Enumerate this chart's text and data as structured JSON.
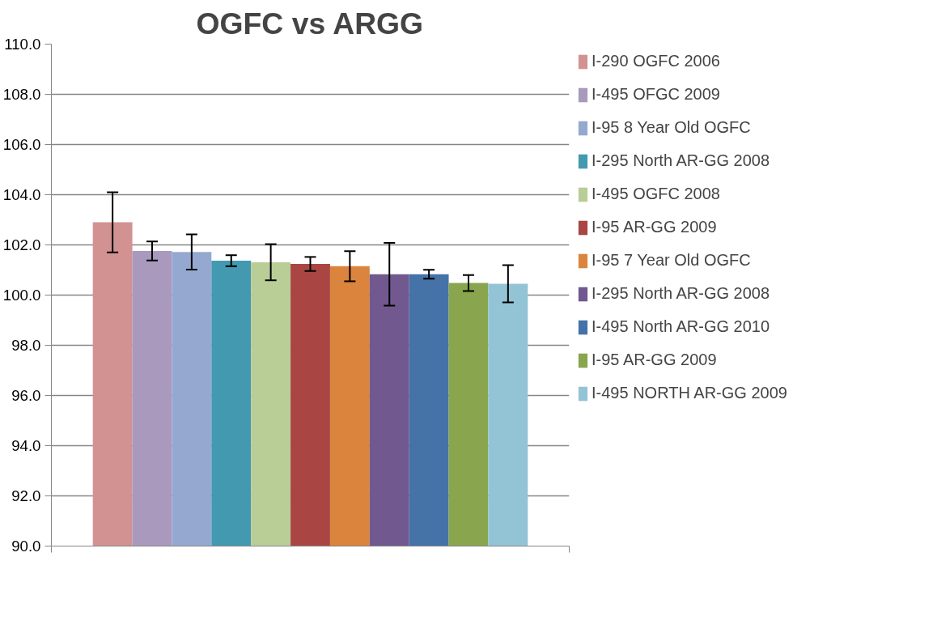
{
  "chart_data": {
    "type": "bar",
    "title": "OGFC vs ARGG",
    "categories": [
      null
    ],
    "ylim": [
      90,
      110
    ],
    "yticks": [
      {
        "value": 90,
        "label": "90.0"
      },
      {
        "value": 92,
        "label": "92.0"
      },
      {
        "value": 94,
        "label": "94.0"
      },
      {
        "value": 96,
        "label": "96.0"
      },
      {
        "value": 98,
        "label": "98.0"
      },
      {
        "value": 100,
        "label": "100.0"
      },
      {
        "value": 102,
        "label": "102.0"
      },
      {
        "value": 104,
        "label": "104.0"
      },
      {
        "value": 106,
        "label": "106.0"
      },
      {
        "value": 108,
        "label": "108.0"
      },
      {
        "value": 110,
        "label": "110.0"
      }
    ],
    "grid": "y",
    "legend": "right",
    "series": [
      {
        "name": "I-290 OGFC 2006",
        "color": "#d39292",
        "values": [
          102.9
        ],
        "errors": [
          1.2
        ]
      },
      {
        "name": "I-495 OFGC 2009",
        "color": "#a899bd",
        "values": [
          101.76
        ],
        "errors": [
          0.38
        ]
      },
      {
        "name": "I-95 8 Year Old OGFC",
        "color": "#95a9d0",
        "values": [
          101.72
        ],
        "errors": [
          0.7
        ]
      },
      {
        "name": "I-295 North AR-GG 2008",
        "color": "#4399b0",
        "values": [
          101.37
        ],
        "errors": [
          0.22
        ]
      },
      {
        "name": "I-495 OGFC 2008",
        "color": "#b9cd96",
        "values": [
          101.31
        ],
        "errors": [
          0.72
        ]
      },
      {
        "name": "I-95 AR-GG 2009",
        "color": "#a94644",
        "values": [
          101.24
        ],
        "errors": [
          0.28
        ]
      },
      {
        "name": "I-95 7 Year Old OGFC",
        "color": "#db843d",
        "values": [
          101.15
        ],
        "errors": [
          0.6
        ]
      },
      {
        "name": "I-295 North AR-GG 2008",
        "color": "#71588f",
        "values": [
          100.83
        ],
        "errors": [
          1.25
        ]
      },
      {
        "name": "I-495 North AR-GG 2010",
        "color": "#4572a7",
        "values": [
          100.83
        ],
        "errors": [
          0.18
        ]
      },
      {
        "name": "I-95 AR-GG 2009",
        "color": "#89a54e",
        "values": [
          100.48
        ],
        "errors": [
          0.32
        ]
      },
      {
        "name": "I-495 NORTH AR-GG 2009",
        "color": "#93c4d5",
        "values": [
          100.45
        ],
        "errors": [
          0.74
        ]
      }
    ]
  }
}
